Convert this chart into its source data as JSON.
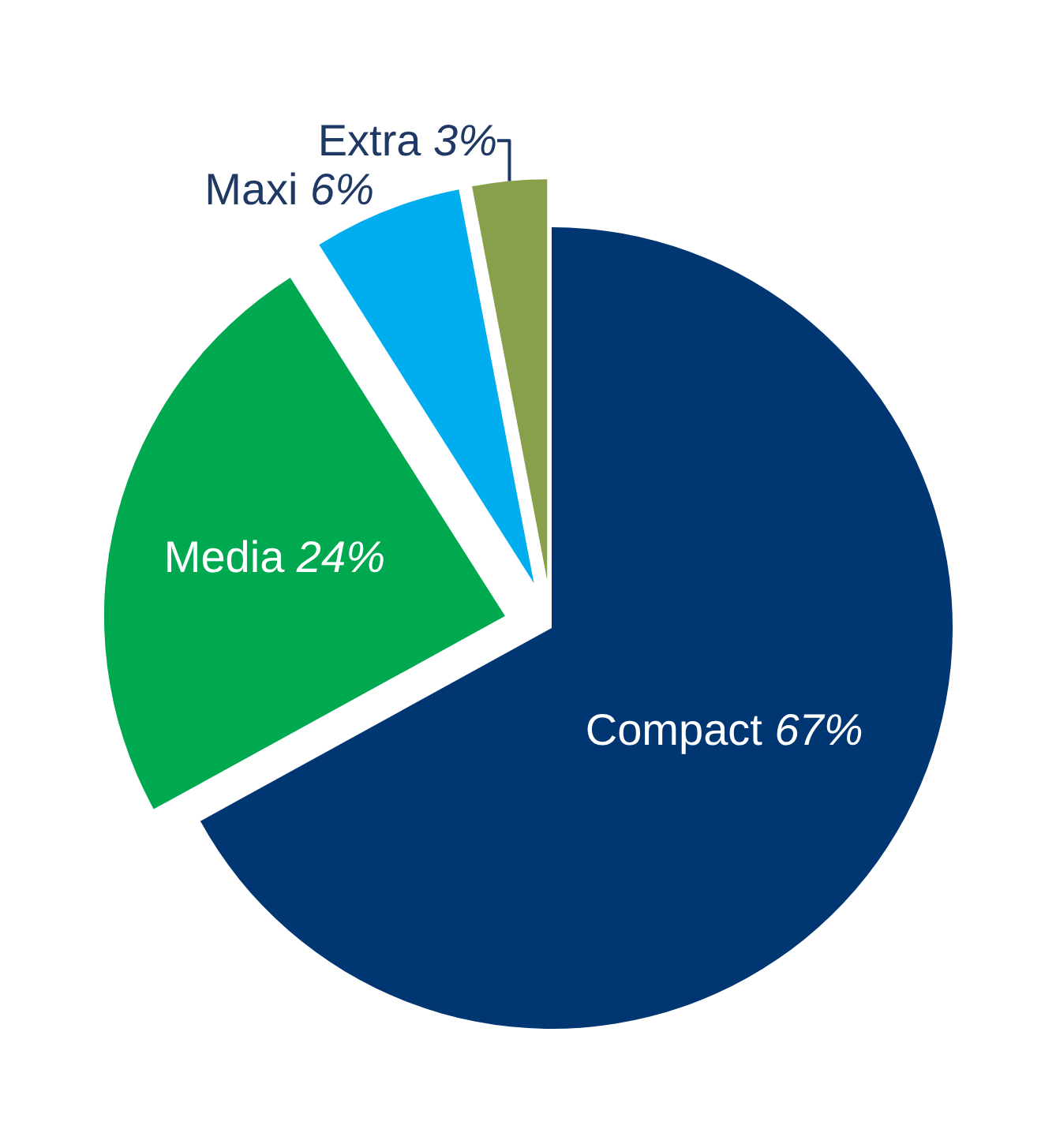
{
  "chart_data": {
    "type": "pie",
    "categories": [
      "Compact",
      "Media",
      "Maxi",
      "Extra"
    ],
    "values": [
      67,
      24,
      6,
      3
    ],
    "value_labels": [
      "67%",
      "24%",
      "6%",
      "3%"
    ],
    "colors": [
      "#003671",
      "#00a84f",
      "#00aeef",
      "#88a04c"
    ],
    "legend": false
  }
}
